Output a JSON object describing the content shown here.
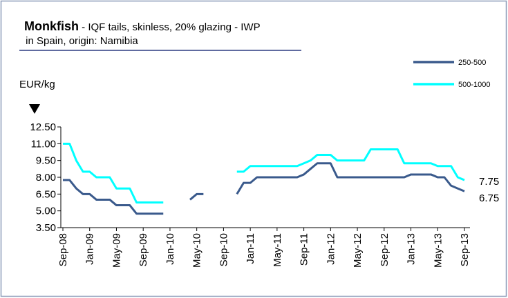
{
  "chart_data": {
    "type": "line",
    "title": "Monkfish",
    "subtitle": " - IQF tails, skinless, 20% glazing - IWP",
    "subtitle_line2": " in Spain, origin: Namibia",
    "y_label": "EUR/kg",
    "annotations": [
      7.75,
      6.75
    ],
    "categories": [
      "Sep-08",
      null,
      null,
      null,
      "Jan-09",
      null,
      null,
      null,
      "May-09",
      null,
      null,
      null,
      "Sep-09",
      null,
      null,
      null,
      "Jan-10",
      null,
      null,
      null,
      "May-10",
      null,
      null,
      null,
      "Sep-10",
      null,
      null,
      null,
      "Jan-11",
      null,
      null,
      null,
      "May-11",
      null,
      null,
      null,
      "Sep-11",
      null,
      null,
      null,
      "Jan-12",
      null,
      null,
      null,
      "May-12",
      null,
      null,
      null,
      "Sep-12",
      null,
      null,
      null,
      "Jan-13",
      null,
      null,
      null,
      "May-13",
      null,
      null,
      null,
      "Sep-13"
    ],
    "series": [
      {
        "name": "250-500",
        "color": "#3a5a8c",
        "values": [
          7.75,
          7.75,
          7,
          6.5,
          6.5,
          6,
          6,
          6,
          5.5,
          5.5,
          5.5,
          4.75,
          4.75,
          4.75,
          4.75,
          4.75,
          null,
          null,
          null,
          6,
          6.5,
          6.5,
          null,
          null,
          null,
          null,
          6.5,
          7.5,
          7.5,
          8,
          8,
          8,
          8,
          8,
          8,
          8,
          8.25,
          8.75,
          9.25,
          9.25,
          9.25,
          8,
          8,
          8,
          8,
          8,
          8,
          8,
          8,
          8,
          8,
          8,
          8.25,
          8.25,
          8.25,
          8.25,
          8,
          8,
          7.25,
          7,
          6.75
        ]
      },
      {
        "name": "500-1000",
        "color": "#00ffff",
        "values": [
          11,
          11,
          9.5,
          8.5,
          8.5,
          8,
          8,
          8,
          7,
          7,
          7,
          5.75,
          5.75,
          5.75,
          5.75,
          5.75,
          null,
          null,
          null,
          null,
          null,
          null,
          null,
          null,
          null,
          null,
          8.5,
          8.5,
          9,
          9,
          9,
          9,
          9,
          9,
          9,
          9,
          9.25,
          9.5,
          10,
          10,
          10,
          9.5,
          9.5,
          9.5,
          9.5,
          9.5,
          10.5,
          10.5,
          10.5,
          10.5,
          10.5,
          9.25,
          9.25,
          9.25,
          9.25,
          9.25,
          9,
          9,
          9,
          8,
          7.75
        ]
      }
    ],
    "ylim": [
      3.5,
      12.5
    ],
    "yticks": [
      {
        "value": 3.5,
        "label": "3.50"
      },
      {
        "value": 5,
        "label": "5.00"
      },
      {
        "value": 6.5,
        "label": "6.50"
      },
      {
        "value": 8,
        "label": "8.00"
      },
      {
        "value": 9.5,
        "label": "9.50"
      },
      {
        "value": 11,
        "label": "11.00"
      },
      {
        "value": 12.5,
        "label": "12.50"
      }
    ],
    "grid": false,
    "legend": "top-right"
  }
}
